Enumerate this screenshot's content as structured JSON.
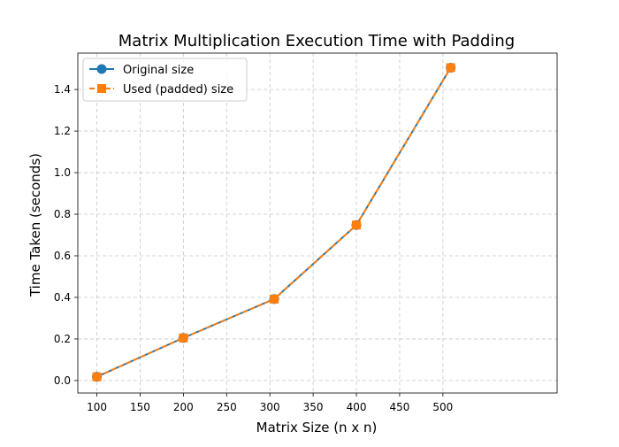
{
  "chart_data": {
    "type": "line",
    "title": "Matrix Multiplication Execution Time with Padding",
    "xlabel": "Matrix Size (n x n)",
    "ylabel": "Time Taken (seconds)",
    "xlim": [
      78,
      632
    ],
    "ylim": [
      -0.06,
      1.575
    ],
    "xticks": [
      100,
      150,
      200,
      250,
      300,
      350,
      400,
      450,
      500
    ],
    "yticks": [
      0.0,
      0.2,
      0.4,
      0.6,
      0.8,
      1.0,
      1.2,
      1.4
    ],
    "ytick_labels": [
      "0.0",
      "0.2",
      "0.4",
      "0.6",
      "0.8",
      "1.0",
      "1.2",
      "1.4"
    ],
    "grid": true,
    "legend_position": "top-left",
    "series": [
      {
        "name": "Original size",
        "x": [
          100,
          200,
          305,
          400,
          509
        ],
        "y": [
          0.018,
          0.205,
          0.392,
          0.748,
          1.505
        ],
        "color": "#1f77b4",
        "line_style": "solid",
        "marker": "circle"
      },
      {
        "name": "Used (padded) size",
        "x": [
          100,
          200,
          305,
          400,
          509
        ],
        "y": [
          0.018,
          0.205,
          0.392,
          0.748,
          1.505
        ],
        "color": "#ff7f0e",
        "line_style": "dashed",
        "marker": "square"
      }
    ]
  }
}
